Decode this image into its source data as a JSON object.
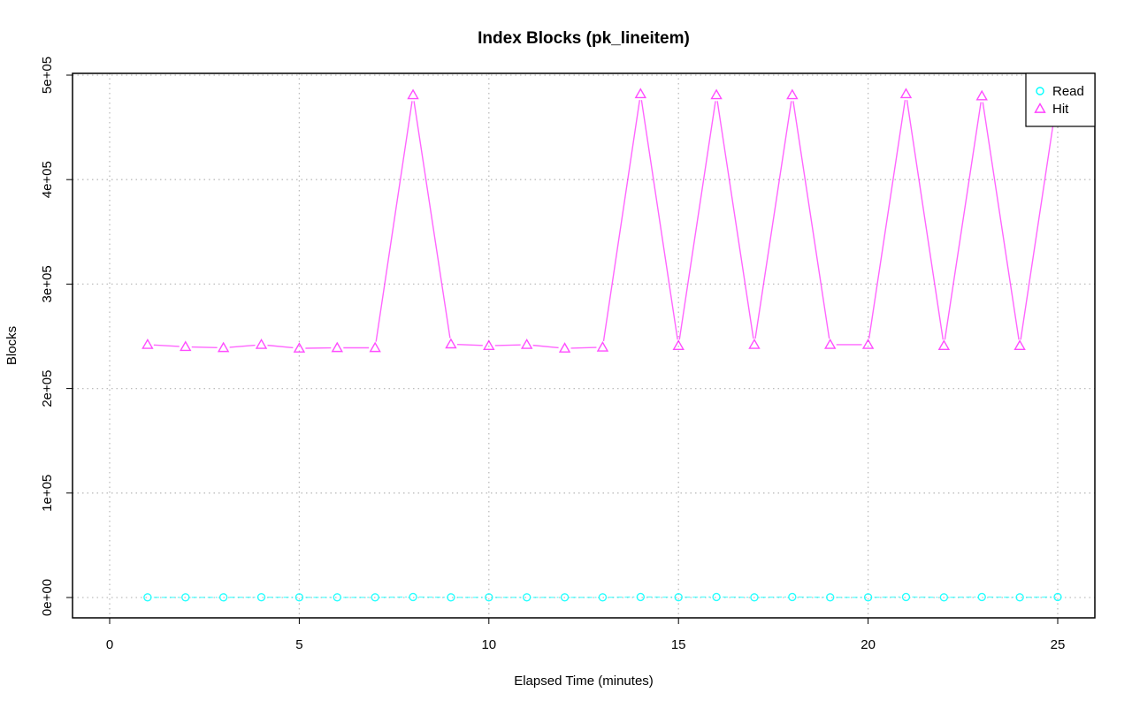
{
  "chart_data": {
    "type": "line",
    "title": "Index Blocks (pk_lineitem)",
    "xlabel": "Elapsed Time (minutes)",
    "ylabel": "Blocks",
    "xlim": [
      0,
      26
    ],
    "ylim": [
      -15000,
      500000
    ],
    "x_ticks": [
      0,
      5,
      10,
      15,
      20,
      25
    ],
    "y_ticks": [
      0,
      100000,
      200000,
      300000,
      400000,
      500000
    ],
    "y_tick_labels": [
      "0e+00",
      "1e+05",
      "2e+05",
      "3e+05",
      "4e+05",
      "5e+05"
    ],
    "grid": true,
    "legend_position": "top-right",
    "x": [
      1,
      2,
      3,
      4,
      5,
      6,
      7,
      8,
      9,
      10,
      11,
      12,
      13,
      14,
      15,
      16,
      17,
      18,
      19,
      20,
      21,
      22,
      23,
      24,
      25
    ],
    "series": [
      {
        "name": "Read",
        "color": "#00ffff",
        "marker": "circle",
        "values": [
          200,
          200,
          200,
          300,
          200,
          200,
          200,
          500,
          200,
          200,
          200,
          200,
          200,
          500,
          300,
          500,
          200,
          500,
          200,
          200,
          500,
          200,
          500,
          200,
          500
        ]
      },
      {
        "name": "Hit",
        "color": "#ff00ff",
        "marker": "triangle",
        "values": [
          242000,
          240000,
          239000,
          242000,
          238500,
          239000,
          239000,
          481000,
          242500,
          241000,
          242000,
          238500,
          239500,
          482000,
          241000,
          481000,
          242000,
          481000,
          242000,
          242000,
          482000,
          241000,
          480000,
          241000,
          482000
        ]
      }
    ]
  }
}
